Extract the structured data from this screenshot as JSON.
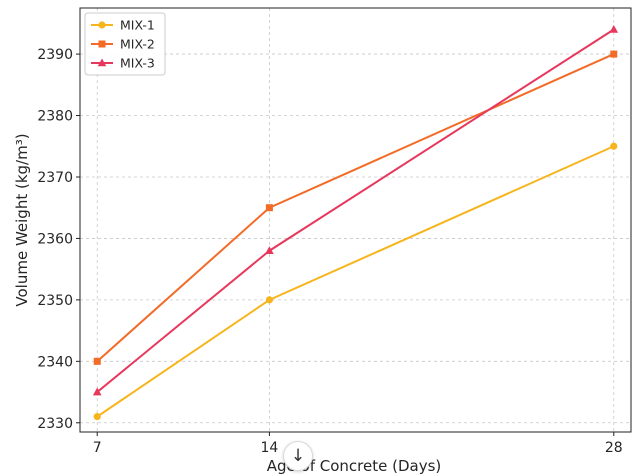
{
  "chart_data": {
    "type": "line",
    "xlabel": "Age of Concrete (Days)",
    "ylabel": "Volume Weight (kg/m³)",
    "x": [
      7,
      14,
      28
    ],
    "xticks": [
      "7",
      "14",
      "28"
    ],
    "xlim": [
      6.3,
      28.7
    ],
    "ylim": [
      2328.5,
      2397.5
    ],
    "yticks": [
      2330,
      2340,
      2350,
      2360,
      2370,
      2380,
      2390
    ],
    "grid": true,
    "legend_position": "top-left",
    "series": [
      {
        "name": "MIX-1",
        "values": [
          2331,
          2350,
          2375
        ],
        "color": "#f7b51d",
        "marker": "circle"
      },
      {
        "name": "MIX-2",
        "values": [
          2340,
          2365,
          2390
        ],
        "color": "#f26b27",
        "marker": "square"
      },
      {
        "name": "MIX-3",
        "values": [
          2335,
          2358,
          2394
        ],
        "color": "#e8375c",
        "marker": "triangle"
      }
    ]
  },
  "overlay": {
    "scroll_icon": "arrow-down-icon",
    "scroll_glyph": "↓"
  }
}
